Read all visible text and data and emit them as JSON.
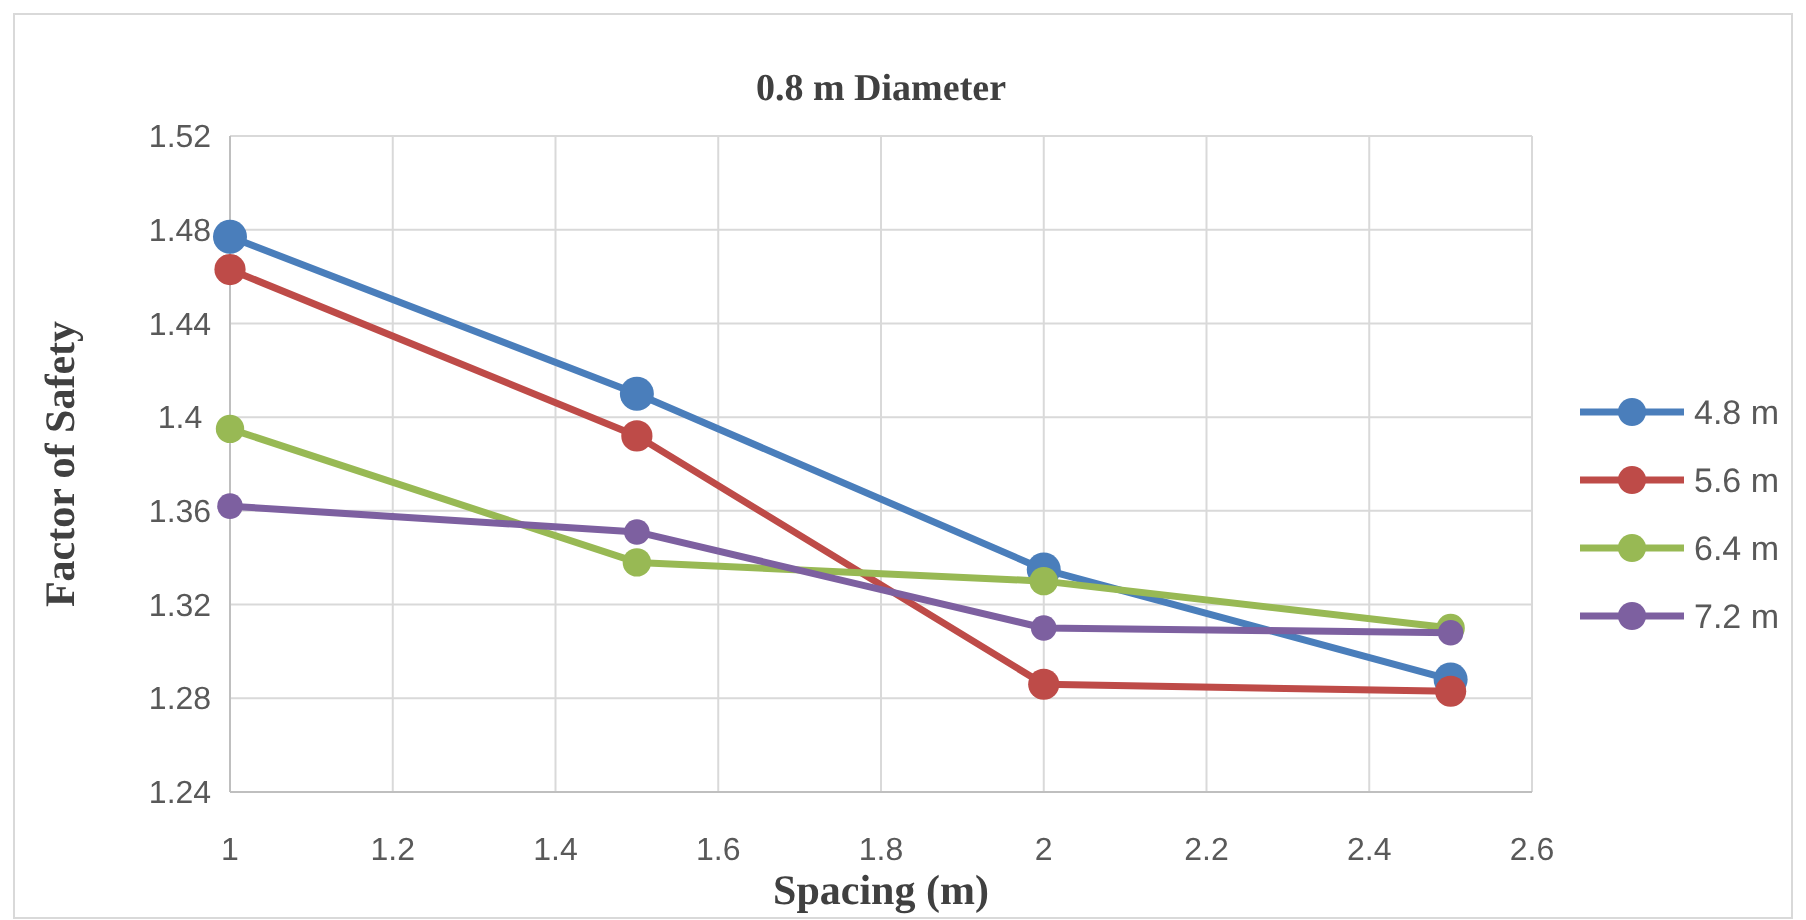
{
  "chart_data": {
    "type": "line",
    "title": "0.8 m Diameter",
    "xlabel": "Spacing (m)",
    "ylabel": "Factor of Safety",
    "x": [
      1,
      1.5,
      2,
      2.5
    ],
    "series": [
      {
        "name": "4.8 m",
        "color": "#4a7ebb",
        "values": [
          1.477,
          1.41,
          1.335,
          1.288
        ]
      },
      {
        "name": "5.6 m",
        "color": "#be4b48",
        "values": [
          1.463,
          1.392,
          1.286,
          1.283
        ]
      },
      {
        "name": "6.4 m",
        "color": "#98b954",
        "values": [
          1.395,
          1.338,
          1.33,
          1.31
        ]
      },
      {
        "name": "7.2 m",
        "color": "#7d60a0",
        "values": [
          1.362,
          1.351,
          1.31,
          1.308
        ]
      }
    ],
    "xlim": [
      1,
      2.6
    ],
    "xticks": [
      1,
      1.2,
      1.4,
      1.6,
      1.8,
      2,
      2.2,
      2.4,
      2.6
    ],
    "ylim": [
      1.24,
      1.52
    ],
    "yticks": [
      1.24,
      1.28,
      1.32,
      1.36,
      1.4,
      1.44,
      1.48,
      1.52
    ],
    "grid": true,
    "legend": "right",
    "marker": "circle",
    "line_style": "solid"
  }
}
